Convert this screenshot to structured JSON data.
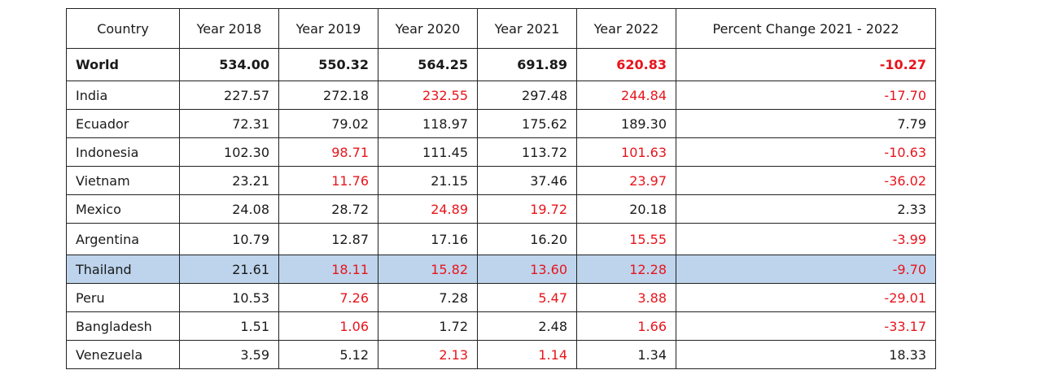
{
  "table": {
    "headers": [
      "Country",
      "Year 2018",
      "Year 2019",
      "Year 2020",
      "Year 2021",
      "Year 2022",
      "Percent Change 2021 - 2022"
    ],
    "rows": [
      {
        "country": "World",
        "values": [
          "534.00",
          "550.32",
          "564.25",
          "691.89",
          "620.83",
          "-10.27"
        ],
        "red": [
          false,
          false,
          false,
          false,
          true,
          true
        ],
        "bold": true,
        "highlight": false
      },
      {
        "country": "India",
        "values": [
          "227.57",
          "272.18",
          "232.55",
          "297.48",
          "244.84",
          "-17.70"
        ],
        "red": [
          false,
          false,
          true,
          false,
          true,
          true
        ],
        "bold": false,
        "highlight": false
      },
      {
        "country": "Ecuador",
        "values": [
          "72.31",
          "79.02",
          "118.97",
          "175.62",
          "189.30",
          "7.79"
        ],
        "red": [
          false,
          false,
          false,
          false,
          false,
          false
        ],
        "bold": false,
        "highlight": false
      },
      {
        "country": "Indonesia",
        "values": [
          "102.30",
          "98.71",
          "111.45",
          "113.72",
          "101.63",
          "-10.63"
        ],
        "red": [
          false,
          true,
          false,
          false,
          true,
          true
        ],
        "bold": false,
        "highlight": false
      },
      {
        "country": "Vietnam",
        "values": [
          "23.21",
          "11.76",
          "21.15",
          "37.46",
          "23.97",
          "-36.02"
        ],
        "red": [
          false,
          true,
          false,
          false,
          true,
          true
        ],
        "bold": false,
        "highlight": false
      },
      {
        "country": "Mexico",
        "values": [
          "24.08",
          "28.72",
          "24.89",
          "19.72",
          "20.18",
          "2.33"
        ],
        "red": [
          false,
          false,
          true,
          true,
          false,
          false
        ],
        "bold": false,
        "highlight": false
      },
      {
        "country": "Argentina",
        "values": [
          "10.79",
          "12.87",
          "17.16",
          "16.20",
          "15.55",
          "-3.99"
        ],
        "red": [
          false,
          false,
          false,
          false,
          true,
          true
        ],
        "bold": false,
        "highlight": false
      },
      {
        "country": "Thailand",
        "values": [
          "21.61",
          "18.11",
          "15.82",
          "13.60",
          "12.28",
          "-9.70"
        ],
        "red": [
          false,
          true,
          true,
          true,
          true,
          true
        ],
        "bold": false,
        "highlight": true
      },
      {
        "country": "Peru",
        "values": [
          "10.53",
          "7.26",
          "7.28",
          "5.47",
          "3.88",
          "-29.01"
        ],
        "red": [
          false,
          true,
          false,
          true,
          true,
          true
        ],
        "bold": false,
        "highlight": false
      },
      {
        "country": "Bangladesh",
        "values": [
          "1.51",
          "1.06",
          "1.72",
          "2.48",
          "1.66",
          "-33.17"
        ],
        "red": [
          false,
          true,
          false,
          false,
          true,
          true
        ],
        "bold": false,
        "highlight": false
      },
      {
        "country": "Venezuela",
        "values": [
          "3.59",
          "5.12",
          "2.13",
          "1.14",
          "1.34",
          "18.33"
        ],
        "red": [
          false,
          false,
          true,
          true,
          false,
          false
        ],
        "bold": false,
        "highlight": false
      }
    ]
  },
  "colors": {
    "negative": "#e8141c",
    "highlight": "#bdd4ec",
    "border": "#222222"
  }
}
